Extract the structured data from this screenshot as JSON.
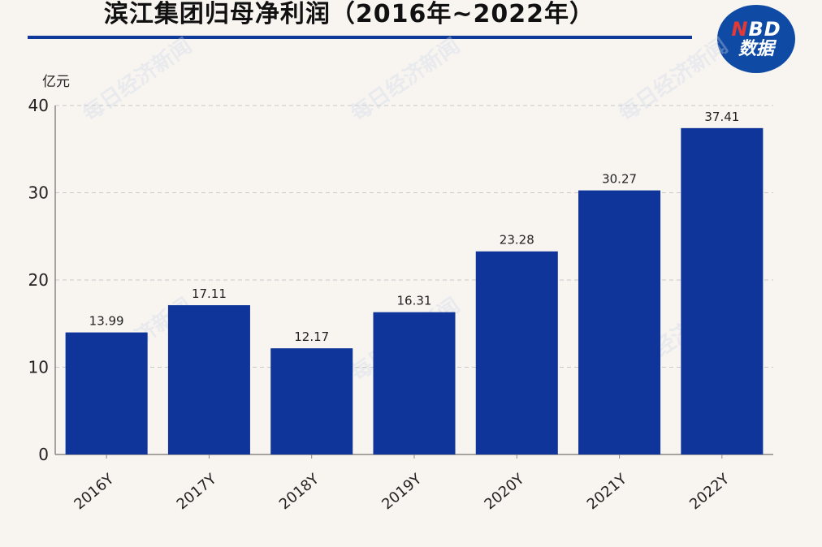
{
  "header": {
    "title": "滨江集团归母净利润（2016年~2022年）",
    "logo_top": "BD",
    "logo_top_accent": "N",
    "logo_bottom": "数据"
  },
  "watermark": "每日经济新闻",
  "chart_data": {
    "type": "bar",
    "title": "滨江集团归母净利润（2016年~2022年）",
    "ylabel": "亿元",
    "xlabel": "",
    "categories": [
      "2016Y",
      "2017Y",
      "2018Y",
      "2019Y",
      "2020Y",
      "2021Y",
      "2022Y"
    ],
    "values": [
      13.99,
      17.11,
      12.17,
      16.31,
      23.28,
      30.27,
      37.41
    ],
    "data_labels": [
      "13.99",
      "17.11",
      "12.17",
      "16.31",
      "23.28",
      "30.27",
      "37.41"
    ],
    "ylim": [
      0,
      40
    ],
    "yticks": [
      "0",
      "10",
      "20",
      "30",
      "40"
    ],
    "grid": true,
    "bar_color": "#0f349a"
  }
}
